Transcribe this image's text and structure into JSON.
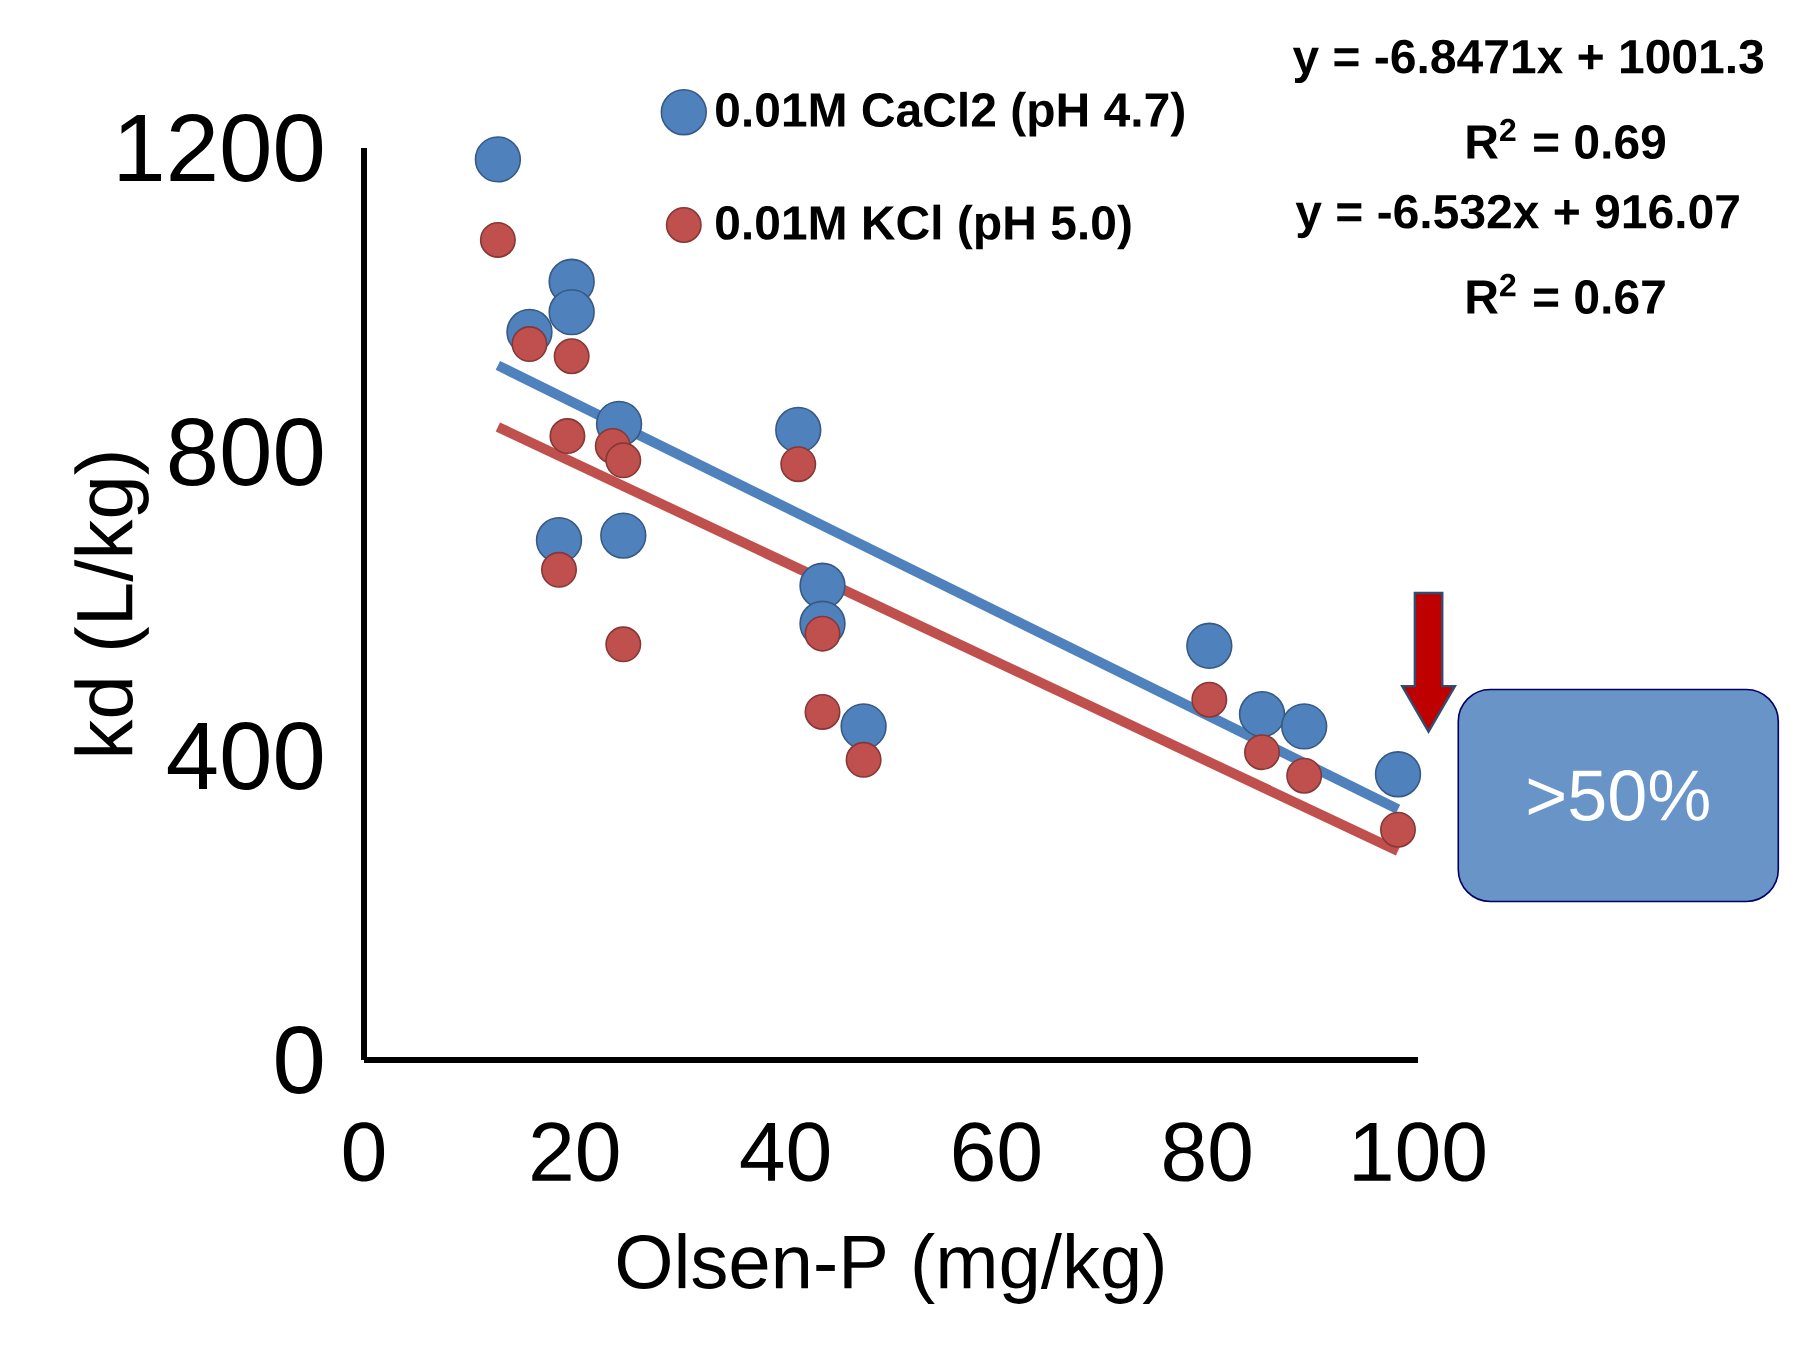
{
  "chart_data": {
    "type": "scatter",
    "xlabel": "Olsen-P (mg/kg)",
    "ylabel": "kd (L/kg)",
    "xlim": [
      0,
      100
    ],
    "ylim": [
      0,
      1200
    ],
    "xticks": [
      0,
      20,
      40,
      60,
      80,
      100
    ],
    "yticks": [
      0,
      400,
      800,
      1200
    ],
    "grid": false,
    "legend": "top right",
    "series": [
      {
        "name": "0.01M CaCl2 (pH 4.7)",
        "marker": "circle",
        "color": "#4f81bd",
        "x": [
          12.7,
          15.7,
          19.7,
          19.7,
          18.5,
          24.2,
          24.6,
          41.2,
          43.5,
          43.5,
          47.4,
          80.2,
          85.2,
          89.2,
          98.1
        ],
        "values": [
          1185,
          958,
          1024,
          984,
          684,
          837,
          690,
          829,
          624,
          574,
          439,
          545,
          455,
          439,
          376
        ]
      },
      {
        "name": "0.01M KCl (pH 5.0)",
        "marker": "circle",
        "color": "#c0504d",
        "x": [
          12.7,
          15.7,
          19.7,
          19.3,
          18.5,
          23.6,
          24.6,
          24.6,
          41.2,
          43.5,
          43.5,
          47.4,
          80.2,
          85.2,
          89.2,
          98.1
        ],
        "values": [
          1079,
          942,
          926,
          821,
          645,
          808,
          789,
          547,
          784,
          561,
          458,
          395,
          474,
          405,
          374,
          303
        ]
      },
      {
        "type": "line",
        "marker": "none",
        "color": "#4f81bd",
        "x": [
          12.7,
          98.1
        ],
        "values": [
          914,
          330
        ]
      },
      {
        "type": "line",
        "marker": "none",
        "color": "#c0504d",
        "x": [
          12.7,
          98.1
        ],
        "values": [
          833,
          275
        ]
      }
    ],
    "annotations": [
      "y = -6.8471x + 1001.3",
      "R$^{2}$ = 0.69",
      "y = -6.532x + 916.07",
      "R$^{2}$ = 0.67",
      ">50%"
    ]
  }
}
